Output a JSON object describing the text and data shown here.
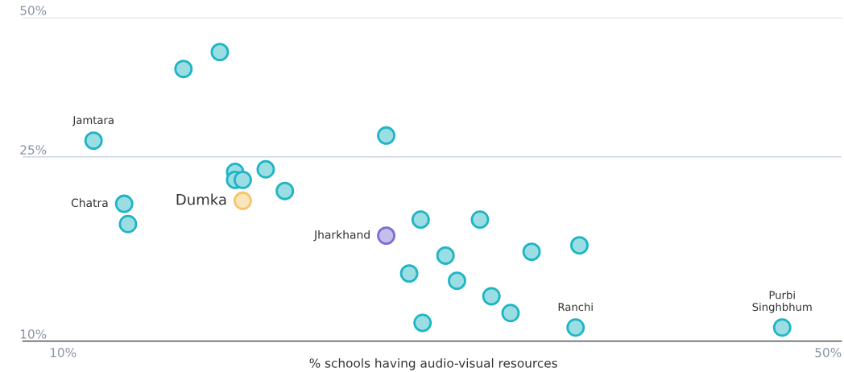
{
  "chart_data": {
    "type": "scatter",
    "xlabel": "% schools having audio-visual resources",
    "log": "y",
    "grid": "y",
    "marker": "circle",
    "xlim": [
      7.9,
      50.7
    ],
    "xticks": [
      {
        "value": 10,
        "label": "10%"
      },
      {
        "value": 50,
        "label": "50%"
      }
    ],
    "ylim": [
      10,
      50
    ],
    "yticks": [
      {
        "value": 10,
        "label": "10%"
      },
      {
        "value": 25,
        "label": "25%"
      },
      {
        "value": 50,
        "label": "50%"
      }
    ],
    "series": [
      {
        "color": "#1fb5c4",
        "x": [
          11.6,
          16.3,
          18.2,
          26.9,
          19.0,
          20.6,
          19.0,
          19.4,
          21.6,
          13.2,
          13.4,
          28.7,
          31.8,
          30.0,
          34.5,
          37.0,
          28.1,
          30.6,
          32.4,
          33.4,
          28.8,
          36.8,
          47.6
        ],
        "values": [
          27.1,
          38.7,
          42.1,
          27.8,
          23.2,
          23.5,
          22.3,
          22.3,
          21.1,
          19.8,
          17.9,
          18.3,
          18.3,
          15.3,
          15.6,
          16.1,
          14.0,
          13.5,
          12.5,
          11.5,
          10.95,
          10.7,
          10.7
        ]
      },
      {
        "color": "#f5c56a",
        "x": [
          19.4
        ],
        "values": [
          20.1
        ]
      },
      {
        "color": "#7b6fd6",
        "x": [
          26.9
        ],
        "values": [
          16.9
        ]
      }
    ],
    "annotations": [
      {
        "text": "Jamtara",
        "x": 11.6,
        "y": 27.1
      },
      {
        "text": "Chatra",
        "x": 13.2,
        "y": 19.8
      },
      {
        "text": "Dumka",
        "x": 19.4,
        "y": 20.1
      },
      {
        "text": "Jharkhand",
        "x": 26.9,
        "y": 16.9
      },
      {
        "text": "Ranchi",
        "x": 36.8,
        "y": 10.7
      },
      {
        "text": "Purbi\nSinghbhum",
        "x": 47.6,
        "y": 10.7
      }
    ]
  }
}
